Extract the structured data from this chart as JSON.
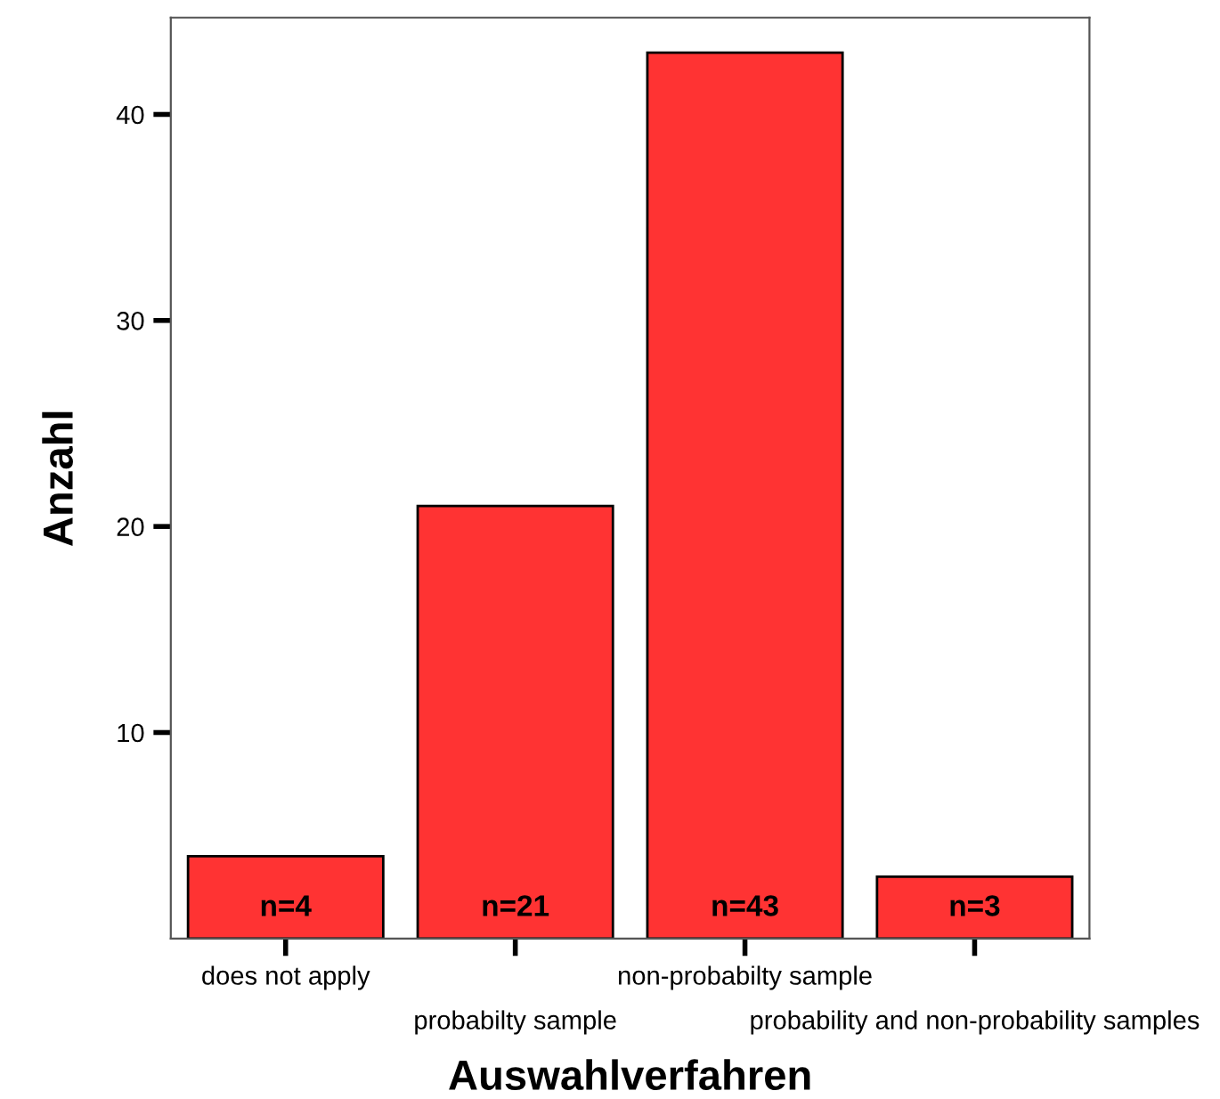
{
  "chart_data": {
    "type": "bar",
    "xlabel": "Auswahlverfahren",
    "ylabel": "Anzahl",
    "categories": [
      "does not apply",
      "probabilty sample",
      "non-probabilty sample",
      "probability and non-probability samples"
    ],
    "values": [
      4,
      21,
      43,
      3
    ],
    "value_labels": [
      "n=4",
      "n=21",
      "n=43",
      "n=3"
    ],
    "color": "#ff3333",
    "ylim": [
      0,
      44.7
    ],
    "yticks": [
      10,
      20,
      30,
      40
    ],
    "grid": false,
    "legend": false
  }
}
